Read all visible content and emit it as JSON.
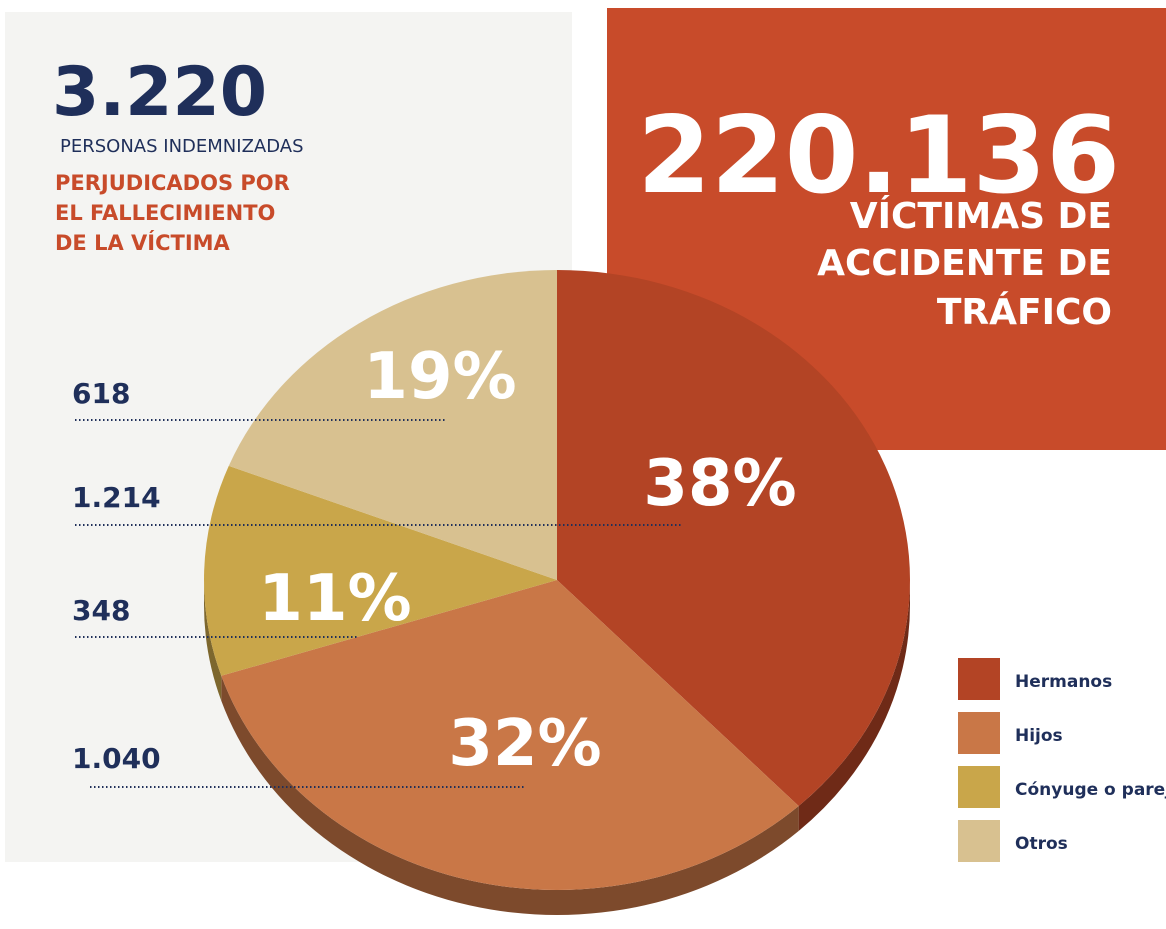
{
  "chart_data": {
    "type": "pie",
    "total_label": "3.220",
    "total_caption": "PERSONAS INDEMNIZADAS",
    "subtitle_lines": [
      "PERJUDICADOS POR",
      "EL FALLECIMIENTO",
      "DE LA VÍCTIMA"
    ],
    "headline": "220.136",
    "headline_lines": [
      "VÍCTIMAS DE",
      "ACCIDENTE DE",
      "TRÁFICO"
    ],
    "categories": [
      "Hermanos",
      "Hijos",
      "Cónyuge o pareja",
      "Otros"
    ],
    "values": [
      38,
      32,
      11,
      19
    ],
    "value_labels": [
      "38%",
      "32%",
      "11%",
      "19%"
    ],
    "count_labels": [
      "1.214",
      "1.040",
      "348",
      "618"
    ],
    "colors": [
      "#b34425",
      "#c97747",
      "#c9a64a",
      "#d8c190"
    ]
  }
}
